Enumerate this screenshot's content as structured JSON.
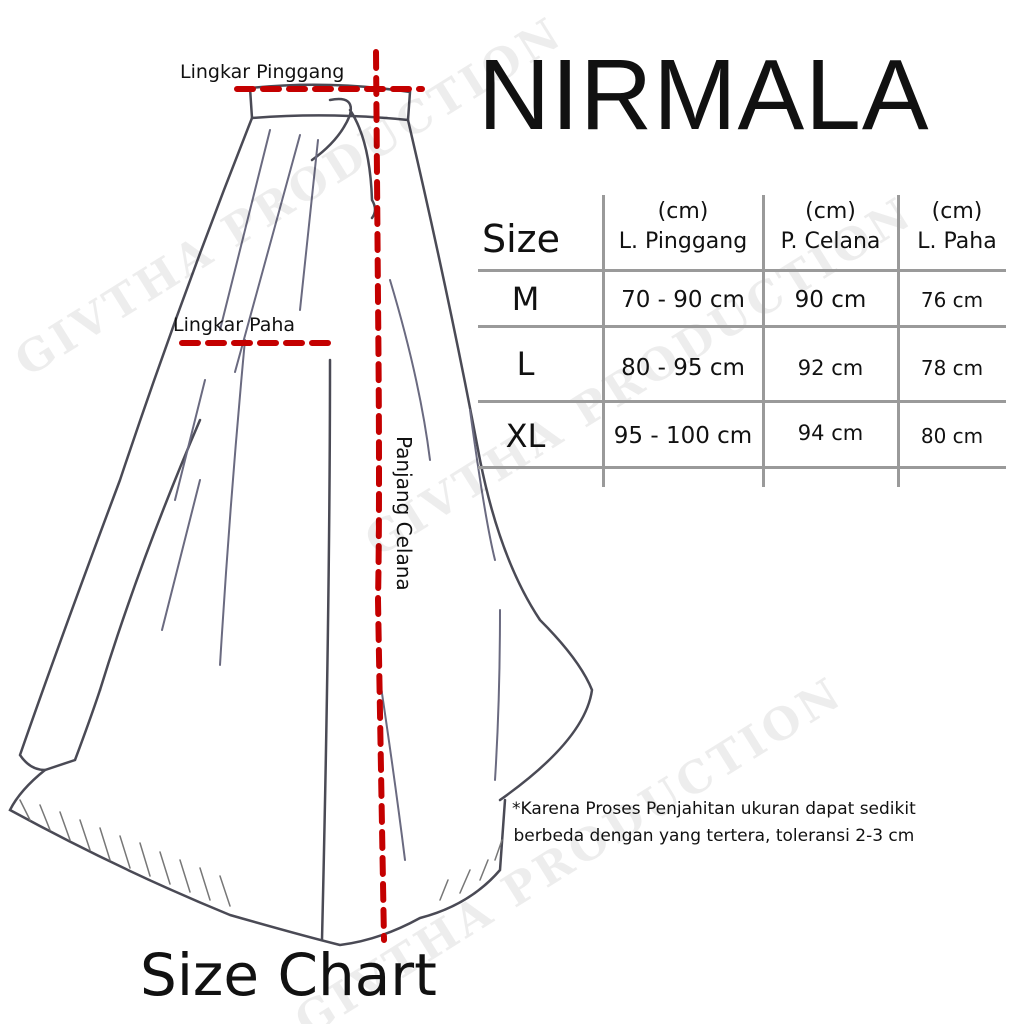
{
  "title": "NIRMALA",
  "footer_title": "Size Chart",
  "watermark": "GIVTHA PRODUCTION",
  "measure_labels": {
    "waist": "Lingkar Pinggang",
    "thigh": "Lingkar Paha",
    "length": "Panjang Celana"
  },
  "measure_line_color": "#c40000",
  "table": {
    "size_header": "Size",
    "columns": [
      {
        "unit": "(cm)",
        "label": "L. Pinggang"
      },
      {
        "unit": "(cm)",
        "label": "P. Celana"
      },
      {
        "unit": "(cm)",
        "label": "L. Paha"
      }
    ],
    "rows": [
      {
        "size": "M",
        "values": [
          "70 - 90 cm",
          "90 cm",
          "76 cm"
        ]
      },
      {
        "size": "L",
        "values": [
          "80 - 95 cm",
          "92 cm",
          "78 cm"
        ]
      },
      {
        "size": "XL",
        "values": [
          "95 - 100 cm",
          "94 cm",
          "80 cm"
        ]
      }
    ]
  },
  "note": {
    "line1": "*Karena Proses Penjahitan ukuran dapat sedikit",
    "line2": "berbeda dengan yang tertera, toleransi 2-3 cm"
  }
}
